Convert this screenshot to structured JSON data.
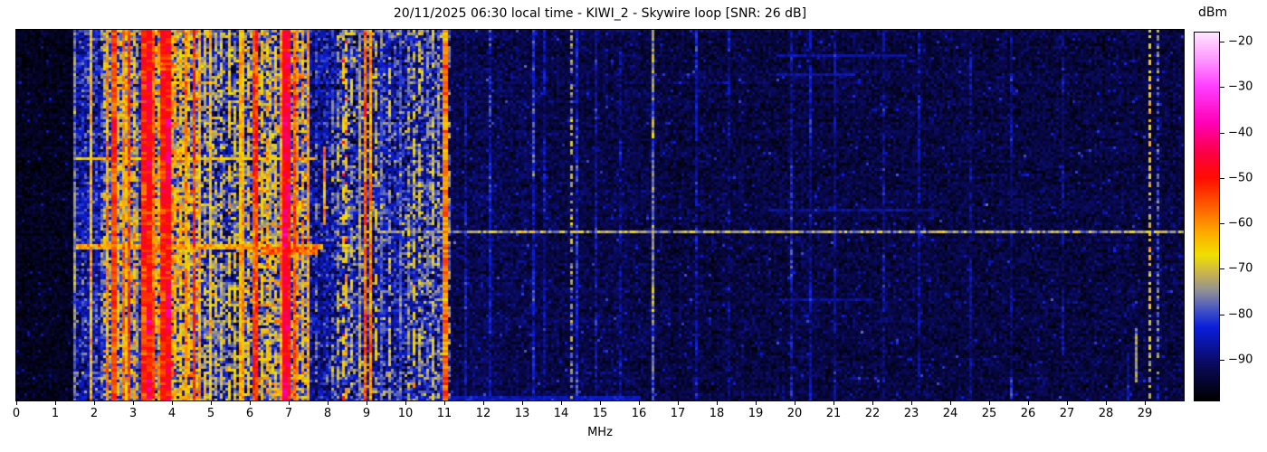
{
  "header": {
    "datetime_local": "20/11/2025 06:30",
    "station": "KIWI_2",
    "antenna": "Skywire loop",
    "snr_db": 26
  },
  "chart_data": {
    "type": "heatmap",
    "subtype": "radio-waterfall-spectrogram",
    "title": "20/11/2025 06:30 local time - KIWI_2 - Skywire loop [SNR: 26 dB]",
    "xlabel": "MHz",
    "colorbar_label": "dBm",
    "grid": "off",
    "legend": "none",
    "x_range_mhz": [
      0,
      30
    ],
    "x_ticks": [
      0,
      1,
      2,
      3,
      4,
      5,
      6,
      7,
      8,
      9,
      10,
      11,
      12,
      13,
      14,
      15,
      16,
      17,
      18,
      19,
      20,
      21,
      22,
      23,
      24,
      25,
      26,
      27,
      28,
      29
    ],
    "value_range_dbm": [
      -99,
      -18
    ],
    "colorbar_ticks": [
      {
        "v": -20,
        "label": "−20"
      },
      {
        "v": -30,
        "label": "−30"
      },
      {
        "v": -40,
        "label": "−40"
      },
      {
        "v": -50,
        "label": "−50"
      },
      {
        "v": -60,
        "label": "−60"
      },
      {
        "v": -70,
        "label": "−70"
      },
      {
        "v": -80,
        "label": "−80"
      },
      {
        "v": -90,
        "label": "−90"
      }
    ],
    "colormap_stops": [
      [
        -99,
        "#000000"
      ],
      [
        -91,
        "#0a0a5f"
      ],
      [
        -83,
        "#0a1edc"
      ],
      [
        -79,
        "#4655c3"
      ],
      [
        -75,
        "#8f8f97"
      ],
      [
        -71,
        "#c9b44e"
      ],
      [
        -67,
        "#f0e000"
      ],
      [
        -62,
        "#ffaa00"
      ],
      [
        -56,
        "#ff5a00"
      ],
      [
        -50,
        "#ff0c00"
      ],
      [
        -44,
        "#fb004b"
      ],
      [
        -38,
        "#ff00b4"
      ],
      [
        -30,
        "#ff3cff"
      ],
      [
        -24,
        "#ff96ff"
      ],
      [
        -18,
        "#ffe6ff"
      ]
    ],
    "noise_bands": [
      {
        "f0": 0.0,
        "f1": 1.5,
        "mean": -96.5,
        "sd": 1.6
      },
      {
        "f0": 1.5,
        "f1": 2.25,
        "mean": -86.0,
        "sd": 5.0
      },
      {
        "f0": 2.25,
        "f1": 3.15,
        "mean": -77.0,
        "sd": 8.0
      },
      {
        "f0": 3.15,
        "f1": 3.25,
        "mean": -84.0,
        "sd": 6.0
      },
      {
        "f0": 3.25,
        "f1": 4.65,
        "mean": -74.0,
        "sd": 9.0
      },
      {
        "f0": 4.65,
        "f1": 6.0,
        "mean": -81.0,
        "sd": 8.0
      },
      {
        "f0": 6.0,
        "f1": 7.55,
        "mean": -78.0,
        "sd": 9.0
      },
      {
        "f0": 7.55,
        "f1": 8.3,
        "mean": -87.0,
        "sd": 5.0
      },
      {
        "f0": 8.3,
        "f1": 9.2,
        "mean": -84.0,
        "sd": 7.0
      },
      {
        "f0": 9.2,
        "f1": 10.0,
        "mean": -85.0,
        "sd": 6.0
      },
      {
        "f0": 10.0,
        "f1": 11.1,
        "mean": -84.0,
        "sd": 7.0
      },
      {
        "f0": 11.1,
        "f1": 13.5,
        "mean": -92.5,
        "sd": 2.4
      },
      {
        "f0": 13.5,
        "f1": 16.5,
        "mean": -93.0,
        "sd": 2.2
      },
      {
        "f0": 16.5,
        "f1": 30.0,
        "mean": -93.5,
        "sd": 2.2
      }
    ],
    "carriers": [
      {
        "f": 1.5,
        "dbm": -76,
        "style": "solid"
      },
      {
        "f": 1.9,
        "dbm": -64,
        "style": "solid"
      },
      {
        "f": 2.05,
        "dbm": -80,
        "style": "dashed"
      },
      {
        "f": 2.17,
        "dbm": -78,
        "style": "dashed"
      },
      {
        "f": 2.33,
        "dbm": -60,
        "style": "solid"
      },
      {
        "f": 2.45,
        "dbm": -65,
        "style": "dashed"
      },
      {
        "f": 2.52,
        "dbm": -53,
        "style": "solid",
        "w": 2
      },
      {
        "f": 2.62,
        "dbm": -68,
        "style": "dashed"
      },
      {
        "f": 2.73,
        "dbm": -58,
        "style": "solid"
      },
      {
        "f": 2.83,
        "dbm": -66,
        "style": "dashed"
      },
      {
        "f": 2.92,
        "dbm": -54,
        "style": "solid"
      },
      {
        "f": 3.02,
        "dbm": -63,
        "style": "dashed"
      },
      {
        "f": 3.12,
        "dbm": -76,
        "style": "dashed"
      },
      {
        "f": 3.3,
        "dbm": -52,
        "style": "solid",
        "w": 2
      },
      {
        "f": 3.42,
        "dbm": -48,
        "style": "solid",
        "w": 2
      },
      {
        "f": 3.55,
        "dbm": -56,
        "style": "solid"
      },
      {
        "f": 3.65,
        "dbm": -62,
        "style": "dashed"
      },
      {
        "f": 3.76,
        "dbm": -50,
        "style": "solid",
        "w": 2
      },
      {
        "f": 3.88,
        "dbm": -47,
        "style": "solid",
        "w": 2
      },
      {
        "f": 3.98,
        "dbm": -58,
        "style": "dashed"
      },
      {
        "f": 4.1,
        "dbm": -63,
        "style": "dashed"
      },
      {
        "f": 4.22,
        "dbm": -67,
        "style": "dashed"
      },
      {
        "f": 4.33,
        "dbm": -61,
        "style": "solid"
      },
      {
        "f": 4.45,
        "dbm": -66,
        "style": "dashed"
      },
      {
        "f": 4.57,
        "dbm": -53,
        "style": "solid"
      },
      {
        "f": 4.7,
        "dbm": -62,
        "style": "solid"
      },
      {
        "f": 4.85,
        "dbm": -68,
        "style": "dashed"
      },
      {
        "f": 5.0,
        "dbm": -65,
        "style": "solid"
      },
      {
        "f": 5.15,
        "dbm": -72,
        "style": "dashed"
      },
      {
        "f": 5.3,
        "dbm": -69,
        "style": "dashed"
      },
      {
        "f": 5.45,
        "dbm": -67,
        "style": "dashed"
      },
      {
        "f": 5.6,
        "dbm": -71,
        "style": "dashed"
      },
      {
        "f": 5.73,
        "dbm": -64,
        "style": "solid"
      },
      {
        "f": 5.85,
        "dbm": -61,
        "style": "solid"
      },
      {
        "f": 5.97,
        "dbm": -65,
        "style": "dashed"
      },
      {
        "f": 6.07,
        "dbm": -55,
        "style": "solid"
      },
      {
        "f": 6.18,
        "dbm": -53,
        "style": "solid"
      },
      {
        "f": 6.3,
        "dbm": -67,
        "style": "dashed"
      },
      {
        "f": 6.42,
        "dbm": -64,
        "style": "dashed"
      },
      {
        "f": 6.55,
        "dbm": -69,
        "style": "dashed"
      },
      {
        "f": 6.67,
        "dbm": -63,
        "style": "dashed"
      },
      {
        "f": 6.8,
        "dbm": -60,
        "style": "solid"
      },
      {
        "f": 6.92,
        "dbm": -46,
        "style": "solid",
        "w": 2
      },
      {
        "f": 7.01,
        "dbm": -48,
        "style": "solid",
        "w": 2
      },
      {
        "f": 7.12,
        "dbm": -56,
        "style": "solid"
      },
      {
        "f": 7.25,
        "dbm": -60,
        "style": "dashed"
      },
      {
        "f": 7.37,
        "dbm": -62,
        "style": "dashed"
      },
      {
        "f": 7.5,
        "dbm": -61,
        "style": "solid"
      },
      {
        "f": 7.7,
        "dbm": -80,
        "style": "dashed"
      },
      {
        "f": 7.89,
        "dbm": -60,
        "style": "solid",
        "t0": 0.31,
        "t1": 0.52
      },
      {
        "f": 8.1,
        "dbm": -77,
        "style": "dashed"
      },
      {
        "f": 8.25,
        "dbm": -74,
        "style": "dashed"
      },
      {
        "f": 8.4,
        "dbm": -67,
        "style": "reddots"
      },
      {
        "f": 8.5,
        "dbm": -64,
        "style": "reddots"
      },
      {
        "f": 8.62,
        "dbm": -73,
        "style": "dashed"
      },
      {
        "f": 8.8,
        "dbm": -75,
        "style": "solid"
      },
      {
        "f": 8.95,
        "dbm": -57,
        "style": "solid"
      },
      {
        "f": 9.1,
        "dbm": -60,
        "style": "solid"
      },
      {
        "f": 9.22,
        "dbm": -70,
        "style": "dashed"
      },
      {
        "f": 9.4,
        "dbm": -79,
        "style": "solid"
      },
      {
        "f": 9.58,
        "dbm": -71,
        "style": "dashed"
      },
      {
        "f": 9.75,
        "dbm": -82,
        "style": "dashed"
      },
      {
        "f": 9.9,
        "dbm": -79,
        "style": "solid"
      },
      {
        "f": 10.1,
        "dbm": -74,
        "style": "dashed"
      },
      {
        "f": 10.22,
        "dbm": -69,
        "style": "dashed"
      },
      {
        "f": 10.38,
        "dbm": -73,
        "style": "dashed"
      },
      {
        "f": 10.55,
        "dbm": -77,
        "style": "dashed"
      },
      {
        "f": 10.7,
        "dbm": -71,
        "style": "dashed"
      },
      {
        "f": 10.85,
        "dbm": -75,
        "style": "dashed"
      },
      {
        "f": 11.0,
        "dbm": -58,
        "style": "solid",
        "w": 2
      },
      {
        "f": 11.12,
        "dbm": -76,
        "style": "dashed"
      },
      {
        "f": 11.55,
        "dbm": -88,
        "style": "solid"
      },
      {
        "f": 12.15,
        "dbm": -86,
        "style": "solid"
      },
      {
        "f": 13.3,
        "dbm": -84,
        "style": "solid"
      },
      {
        "f": 13.6,
        "dbm": -89,
        "style": "solid"
      },
      {
        "f": 14.28,
        "dbm": -74,
        "style": "dotted"
      },
      {
        "f": 14.42,
        "dbm": -85,
        "style": "solid"
      },
      {
        "f": 14.9,
        "dbm": -88,
        "style": "solid"
      },
      {
        "f": 15.55,
        "dbm": -90,
        "style": "solid"
      },
      {
        "f": 16.38,
        "dbm": -76,
        "style": "solid"
      },
      {
        "f": 17.5,
        "dbm": -87,
        "style": "solid"
      },
      {
        "f": 18.3,
        "dbm": -90,
        "style": "solid"
      },
      {
        "f": 19.9,
        "dbm": -87,
        "style": "solid"
      },
      {
        "f": 20.4,
        "dbm": -88,
        "style": "solid"
      },
      {
        "f": 21.05,
        "dbm": -89,
        "style": "solid"
      },
      {
        "f": 22.3,
        "dbm": -90,
        "style": "solid"
      },
      {
        "f": 23.2,
        "dbm": -89,
        "style": "solid"
      },
      {
        "f": 24.5,
        "dbm": -90,
        "style": "solid"
      },
      {
        "f": 25.55,
        "dbm": -89,
        "style": "solid"
      },
      {
        "f": 26.9,
        "dbm": -90,
        "style": "solid"
      },
      {
        "f": 28.6,
        "dbm": -84,
        "style": "solid",
        "t0": 0.87,
        "t1": 1.0
      },
      {
        "f": 28.78,
        "dbm": -75,
        "style": "solid",
        "t0": 0.8,
        "t1": 0.945
      },
      {
        "f": 29.12,
        "dbm": -68,
        "style": "dotted"
      },
      {
        "f": 29.32,
        "dbm": -79,
        "style": "dotted"
      }
    ],
    "horizontal_events": [
      {
        "t": 0.346,
        "f0": 1.55,
        "f1": 7.62,
        "dbm": -67,
        "rows": 1,
        "jitter": 3
      },
      {
        "t": 0.578,
        "f0": 1.55,
        "f1": 7.8,
        "dbm": -62,
        "rows": 2,
        "jitter": 4
      },
      {
        "t": 0.585,
        "f0": 6.3,
        "f1": 7.7,
        "dbm": -57,
        "rows": 3,
        "jitter": 4
      },
      {
        "t": 0.537,
        "f0": 9.25,
        "f1": 30.0,
        "dbm": -73,
        "rows": 1,
        "jitter": 5
      },
      {
        "t": 0.063,
        "f0": 19.5,
        "f1": 22.8,
        "dbm": -87,
        "rows": 1,
        "jitter": 1.5
      },
      {
        "t": 0.115,
        "f0": 19.5,
        "f1": 21.5,
        "dbm": -86,
        "rows": 1,
        "jitter": 1.5
      },
      {
        "t": 0.48,
        "f0": 19.3,
        "f1": 23.5,
        "dbm": -88,
        "rows": 1,
        "jitter": 1.5
      },
      {
        "t": 0.72,
        "f0": 19.6,
        "f1": 22.0,
        "dbm": -88,
        "rows": 1,
        "jitter": 1.5
      },
      {
        "t": 0.985,
        "f0": 10.2,
        "f1": 16.0,
        "dbm": -85,
        "rows": 2,
        "jitter": 2
      }
    ]
  }
}
